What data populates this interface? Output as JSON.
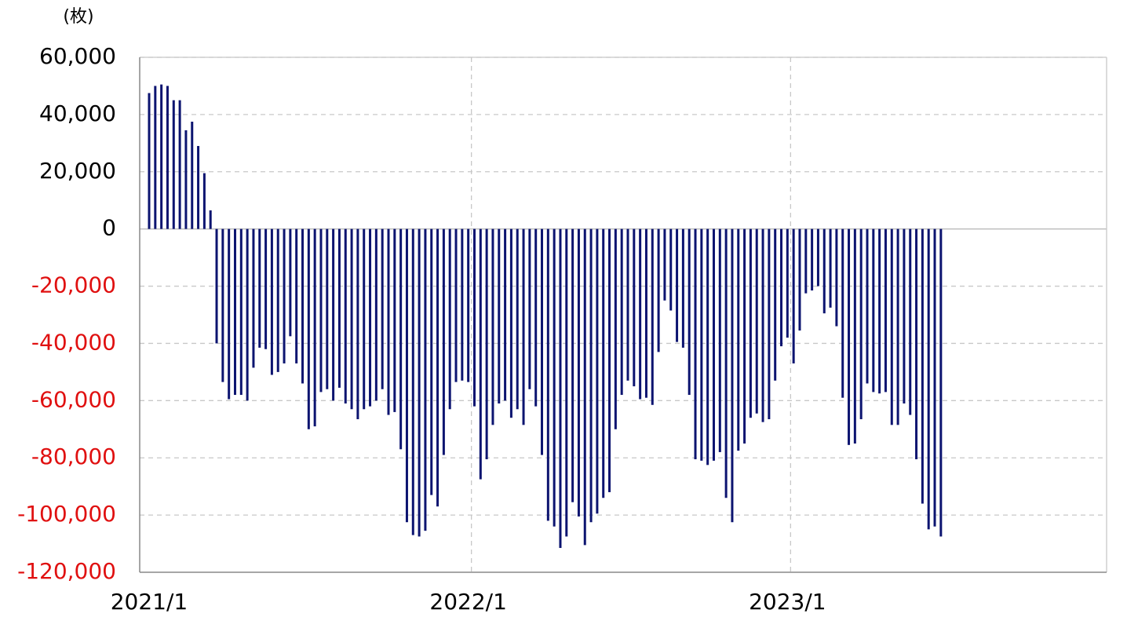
{
  "chart_data": {
    "type": "bar",
    "unit_label": "(枚)",
    "categories": [
      "2021/1",
      null,
      null,
      null,
      null,
      null,
      null,
      null,
      null,
      null,
      null,
      null,
      null,
      null,
      null,
      null,
      null,
      null,
      null,
      null,
      null,
      null,
      null,
      null,
      null,
      null,
      null,
      null,
      null,
      null,
      null,
      null,
      null,
      null,
      null,
      null,
      null,
      null,
      null,
      null,
      null,
      null,
      null,
      null,
      null,
      null,
      null,
      null,
      null,
      null,
      null,
      null,
      "2022/1",
      null,
      null,
      null,
      null,
      null,
      null,
      null,
      null,
      null,
      null,
      null,
      null,
      null,
      null,
      null,
      null,
      null,
      null,
      null,
      null,
      null,
      null,
      null,
      null,
      null,
      null,
      null,
      null,
      null,
      null,
      null,
      null,
      null,
      null,
      null,
      null,
      null,
      null,
      null,
      null,
      null,
      null,
      null,
      null,
      null,
      null,
      null,
      null,
      null,
      null,
      null,
      "2023/1",
      null,
      null,
      null,
      null,
      null,
      null,
      null,
      null,
      null,
      null,
      null,
      null,
      null,
      null,
      null,
      null,
      null,
      null,
      null,
      null,
      null,
      null,
      null,
      null,
      null
    ],
    "values": [
      47500,
      50000,
      50500,
      50000,
      45000,
      45000,
      34500,
      37500,
      29000,
      19500,
      6500,
      -40000,
      -53500,
      -59500,
      -58000,
      -58000,
      -60000,
      -48500,
      -41500,
      -42000,
      -51000,
      -50000,
      -47000,
      -37500,
      -47000,
      -54000,
      -70000,
      -69000,
      -57000,
      -56000,
      -60000,
      -55500,
      -61000,
      -63000,
      -66500,
      -63000,
      -62000,
      -60000,
      -56000,
      -65000,
      -64000,
      -77000,
      -102500,
      -107000,
      -107500,
      -105500,
      -93000,
      -97000,
      -79000,
      -63000,
      -53500,
      -53000,
      -53500,
      -62000,
      -87500,
      -80500,
      -68500,
      -61000,
      -60000,
      -66000,
      -63000,
      -68500,
      -56000,
      -62000,
      -79000,
      -102000,
      -104000,
      -111500,
      -107500,
      -95500,
      -100500,
      -110500,
      -102500,
      -99500,
      -94000,
      -92000,
      -70000,
      -58000,
      -53000,
      -55000,
      -59500,
      -59000,
      -61500,
      -43000,
      -25000,
      -28500,
      -39500,
      -41500,
      -58000,
      -80500,
      -81000,
      -82500,
      -81000,
      -78000,
      -94000,
      -102500,
      -77500,
      -75000,
      -66000,
      -64500,
      -67500,
      -66500,
      -53000,
      -41000,
      -38000,
      -47000,
      -35500,
      -22500,
      -21500,
      -20000,
      -29500,
      -27500,
      -34000,
      -59000,
      -75500,
      -75000,
      -66500,
      -54000,
      -57000,
      -57500,
      -57000,
      -68500,
      -68500,
      -61000,
      -65000,
      -80500,
      -96000,
      -105000,
      -104000,
      -107500
    ],
    "color": "#0c1470",
    "ylim": [
      -120000,
      60000
    ],
    "yticks": [
      {
        "value": -120000,
        "label": "-120,000"
      },
      {
        "value": -100000,
        "label": "-100,000"
      },
      {
        "value": -80000,
        "label": "-80,000"
      },
      {
        "value": -60000,
        "label": "-60,000"
      },
      {
        "value": -40000,
        "label": "-40,000"
      },
      {
        "value": -20000,
        "label": "-20,000"
      },
      0,
      {
        "value": 20000,
        "label": "20,000"
      },
      {
        "value": 40000,
        "label": "40,000"
      },
      {
        "value": 60000,
        "label": "60,000"
      }
    ],
    "negative_tick_color": "#e01010",
    "grid": true
  }
}
